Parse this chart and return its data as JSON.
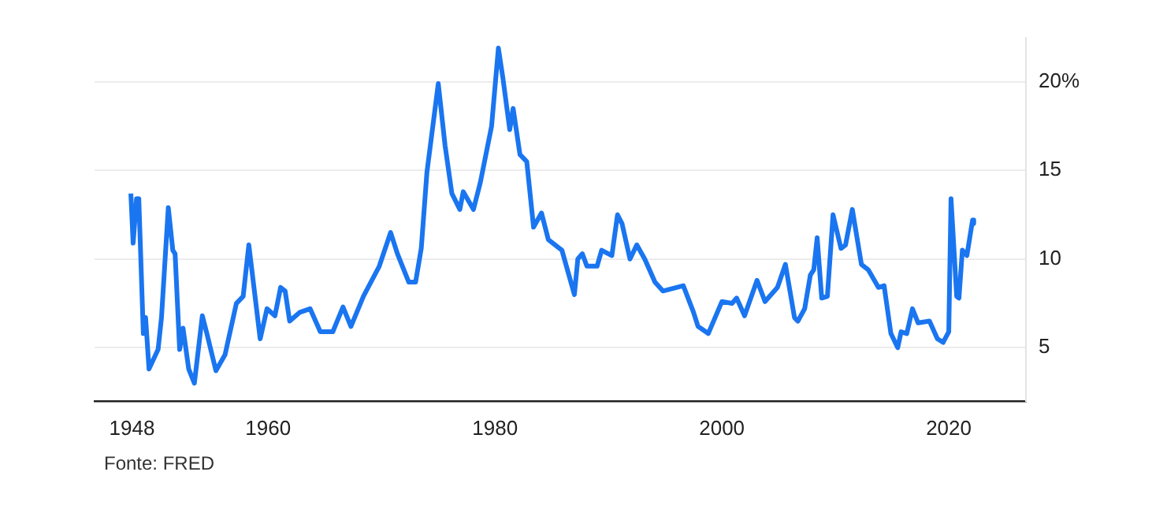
{
  "chart_data": {
    "type": "line",
    "x": [
      1947.9,
      1948.1,
      1948.4,
      1948.6,
      1949.0,
      1949.2,
      1949.5,
      1950.3,
      1950.6,
      1951.2,
      1951.6,
      1951.8,
      1952.2,
      1952.5,
      1953.0,
      1953.5,
      1954.2,
      1954.6,
      1955.4,
      1956.2,
      1957.2,
      1957.8,
      1958.3,
      1959.3,
      1959.9,
      1960.6,
      1961.1,
      1961.5,
      1961.9,
      1962.8,
      1963.7,
      1964.6,
      1965.7,
      1966.6,
      1967.3,
      1968.4,
      1969.8,
      1970.8,
      1971.4,
      1972.4,
      1973.0,
      1973.5,
      1974.0,
      1975.0,
      1975.6,
      1976.2,
      1976.9,
      1977.2,
      1978.1,
      1978.7,
      1979.7,
      1980.3,
      1980.7,
      1981.3,
      1981.6,
      1982.2,
      1982.8,
      1983.4,
      1984.1,
      1984.7,
      1985.9,
      1987.0,
      1987.3,
      1987.7,
      1988.1,
      1989.0,
      1989.4,
      1990.3,
      1990.8,
      1991.2,
      1991.9,
      1992.5,
      1993.2,
      1994.1,
      1994.8,
      1996.6,
      1997.5,
      1997.9,
      1998.8,
      2000.0,
      2000.9,
      2001.3,
      2002.0,
      2003.1,
      2003.8,
      2004.9,
      2005.6,
      2006.0,
      2006.4,
      2006.7,
      2007.3,
      2007.8,
      2008.1,
      2008.4,
      2008.8,
      2009.3,
      2009.8,
      2010.5,
      2010.9,
      2011.5,
      2012.3,
      2012.9,
      2013.8,
      2014.3,
      2014.9,
      2015.5,
      2015.8,
      2016.3,
      2016.8,
      2017.3,
      2018.3,
      2019.0,
      2019.5,
      2020.0,
      2020.2,
      2020.7,
      2020.9,
      2021.2,
      2021.6,
      2022.1,
      2022.2
    ],
    "series": [
      {
        "color": "#1a75f0",
        "values": [
          13.7,
          10.9,
          13.4,
          13.4,
          5.8,
          6.7,
          3.8,
          4.9,
          6.7,
          12.9,
          10.5,
          10.3,
          4.9,
          6.1,
          3.8,
          3.0,
          6.8,
          5.8,
          3.7,
          4.6,
          7.5,
          7.9,
          10.8,
          5.5,
          7.2,
          6.8,
          8.4,
          8.2,
          6.5,
          7.0,
          7.2,
          5.9,
          5.9,
          7.3,
          6.2,
          7.9,
          9.6,
          11.5,
          10.3,
          8.7,
          8.7,
          10.6,
          14.9,
          19.9,
          16.4,
          13.7,
          12.8,
          13.8,
          12.8,
          14.3,
          17.5,
          21.9,
          20.2,
          17.3,
          18.5,
          15.9,
          15.5,
          11.8,
          12.6,
          11.1,
          10.5,
          8.0,
          10.0,
          10.3,
          9.6,
          9.6,
          10.5,
          10.2,
          12.5,
          12.0,
          10.0,
          10.8,
          10.0,
          8.7,
          8.2,
          8.5,
          7.0,
          6.2,
          5.8,
          7.6,
          7.5,
          7.8,
          6.8,
          8.8,
          7.6,
          8.4,
          9.7,
          8.2,
          6.7,
          6.5,
          7.2,
          9.1,
          9.4,
          11.2,
          7.8,
          7.9,
          12.5,
          10.6,
          10.8,
          12.8,
          9.7,
          9.4,
          8.4,
          8.5,
          5.8,
          5.0,
          5.9,
          5.8,
          7.2,
          6.4,
          6.5,
          5.5,
          5.3,
          5.9,
          13.4,
          7.9,
          7.8,
          10.5,
          10.2,
          12.2,
          12.0
        ]
      }
    ],
    "xlim": [
      1944.7,
      2026.8
    ],
    "xticks": [
      1948,
      1960,
      1980,
      2000,
      2020
    ],
    "ylim": [
      2,
      22.5
    ],
    "yticks": [
      5,
      10,
      15,
      {
        "value": 20,
        "label": "20%"
      }
    ],
    "grid": "y",
    "legend": false,
    "annotations": [
      "Fonte: FRED"
    ]
  }
}
